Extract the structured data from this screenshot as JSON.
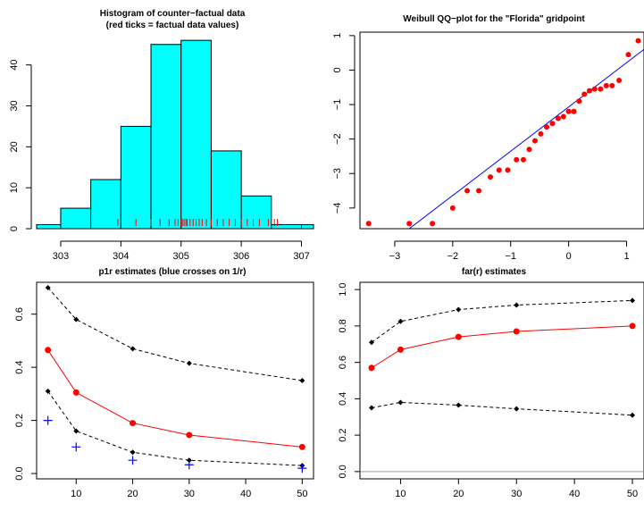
{
  "panels": {
    "histogram": {
      "title1": "Histogram of counter−factual data",
      "title2": "(red ticks = factual data values)"
    },
    "qq": {
      "title": "Weibull QQ−plot for the  \"Florida\"  gridpoint"
    },
    "p1r": {
      "title": "p1r estimates (blue crosses on 1/r)"
    },
    "far": {
      "title": "far(r) estimates"
    }
  },
  "colors": {
    "bar_fill": "#00FFFF",
    "red": "#FF0000",
    "blue": "#0000FF",
    "black": "#000000",
    "grey_line": "#BEBEBE"
  },
  "chart_data": [
    {
      "type": "bar",
      "title": "Histogram of counter−factual data",
      "subtitle": "(red ticks = factual data values)",
      "bin_edges": [
        302.5,
        303.0,
        303.5,
        304.0,
        304.5,
        305.0,
        305.5,
        306.0,
        306.5,
        307.0,
        307.5
      ],
      "values": [
        1,
        5,
        12,
        25,
        45,
        46,
        19,
        8,
        1,
        1
      ],
      "xlim": [
        302.6,
        307.2
      ],
      "ylim": [
        0,
        48
      ],
      "xticks": [
        303,
        304,
        305,
        306,
        307
      ],
      "yticks": [
        0,
        10,
        20,
        30,
        40
      ],
      "rug": [
        303.95,
        304.25,
        304.5,
        304.65,
        304.8,
        304.9,
        304.95,
        305.0,
        305.02,
        305.05,
        305.08,
        305.1,
        305.15,
        305.2,
        305.25,
        305.3,
        305.35,
        305.42,
        305.5,
        305.6,
        305.7,
        305.8,
        305.9,
        306.0,
        306.1,
        306.2,
        306.3,
        306.45,
        306.55,
        306.6
      ]
    },
    {
      "type": "scatter",
      "title": "Weibull QQ−plot for the  \"Florida\"  gridpoint",
      "xlim": [
        -3.6,
        1.3
      ],
      "ylim": [
        -4.6,
        1.1
      ],
      "xticks": [
        -3,
        -2,
        -1,
        0,
        1
      ],
      "yticks": [
        -4,
        -3,
        -2,
        -1,
        0,
        1
      ],
      "points": [
        [
          -3.45,
          -4.45
        ],
        [
          -2.75,
          -4.45
        ],
        [
          -2.35,
          -4.45
        ],
        [
          -2.0,
          -4.0
        ],
        [
          -1.75,
          -3.5
        ],
        [
          -1.55,
          -3.5
        ],
        [
          -1.35,
          -3.1
        ],
        [
          -1.2,
          -2.9
        ],
        [
          -1.05,
          -2.9
        ],
        [
          -0.9,
          -2.6
        ],
        [
          -0.78,
          -2.6
        ],
        [
          -0.68,
          -2.3
        ],
        [
          -0.58,
          -2.05
        ],
        [
          -0.48,
          -1.85
        ],
        [
          -0.38,
          -1.65
        ],
        [
          -0.28,
          -1.55
        ],
        [
          -0.18,
          -1.4
        ],
        [
          -0.09,
          -1.35
        ],
        [
          0.0,
          -1.2
        ],
        [
          0.09,
          -1.2
        ],
        [
          0.18,
          -0.9
        ],
        [
          0.27,
          -0.7
        ],
        [
          0.36,
          -0.6
        ],
        [
          0.45,
          -0.55
        ],
        [
          0.55,
          -0.55
        ],
        [
          0.65,
          -0.45
        ],
        [
          0.75,
          -0.45
        ],
        [
          0.87,
          -0.3
        ],
        [
          1.03,
          0.45
        ],
        [
          1.2,
          0.85
        ]
      ],
      "fit_line": [
        [
          -2.75,
          -4.6
        ],
        [
          1.3,
          0.6
        ]
      ]
    },
    {
      "type": "line",
      "title": "p1r estimates (blue crosses on 1/r)",
      "x": [
        5,
        10,
        20,
        30,
        50
      ],
      "xlim": [
        3,
        52
      ],
      "ylim": [
        -0.02,
        0.72
      ],
      "xticks": [
        10,
        20,
        30,
        40,
        50
      ],
      "yticks": [
        0.0,
        0.2,
        0.4,
        0.6
      ],
      "series": [
        {
          "values": [
            0.7,
            0.58,
            0.47,
            0.415,
            0.35
          ],
          "color": "#000000",
          "dash": true,
          "marker": "diamond"
        },
        {
          "values": [
            0.465,
            0.305,
            0.19,
            0.145,
            0.1
          ],
          "color": "#FF0000",
          "dash": false,
          "marker": "circle"
        },
        {
          "values": [
            0.31,
            0.16,
            0.08,
            0.05,
            0.03
          ],
          "color": "#000000",
          "dash": true,
          "marker": "diamond"
        }
      ],
      "crosses": [
        0.2,
        0.1,
        0.05,
        0.033,
        0.02
      ]
    },
    {
      "type": "line",
      "title": "far(r) estimates",
      "x": [
        5,
        10,
        20,
        30,
        50
      ],
      "xlim": [
        3,
        52
      ],
      "ylim": [
        -0.04,
        1.04
      ],
      "xticks": [
        10,
        20,
        30,
        40,
        50
      ],
      "yticks": [
        0.0,
        0.2,
        0.4,
        0.6,
        0.8,
        1.0
      ],
      "hline": 0,
      "series": [
        {
          "values": [
            0.71,
            0.825,
            0.89,
            0.915,
            0.94
          ],
          "color": "#000000",
          "dash": true,
          "marker": "diamond"
        },
        {
          "values": [
            0.57,
            0.67,
            0.74,
            0.77,
            0.8
          ],
          "color": "#FF0000",
          "dash": false,
          "marker": "circle"
        },
        {
          "values": [
            0.35,
            0.38,
            0.365,
            0.345,
            0.31
          ],
          "color": "#000000",
          "dash": true,
          "marker": "diamond"
        }
      ]
    }
  ]
}
